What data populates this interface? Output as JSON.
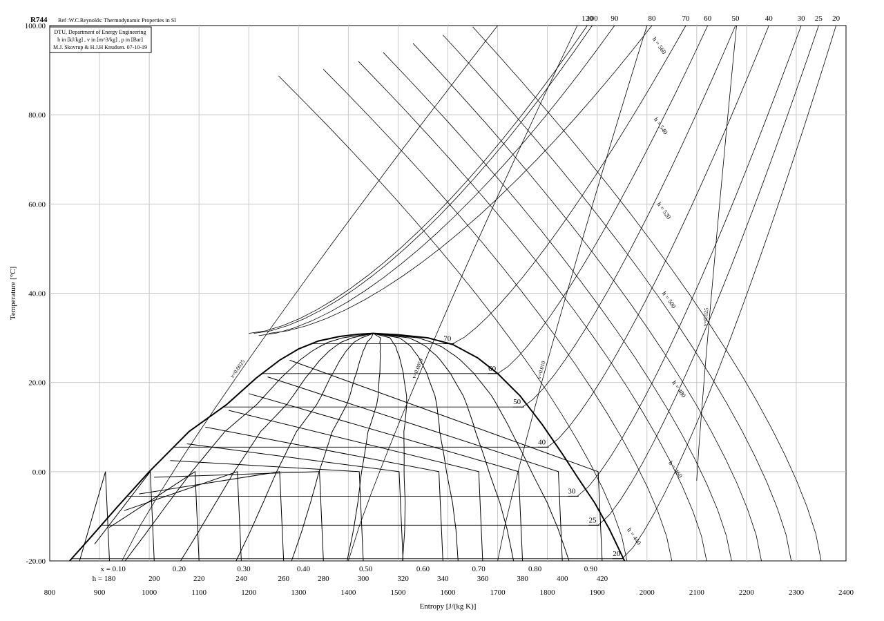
{
  "chart_data": {
    "type": "line",
    "refrigerant": "R744",
    "reference": "Ref :W.C.Reynolds: Thermodynamic Properties in SI",
    "info_box": [
      "DTU, Department of Energy Engineering",
      "h in [kJ/kg] , v in [m^3/kg] , p in [Bar]",
      "M.J. Skovrup & H.J.H Knudsen. 07-10-19"
    ],
    "xlabel": "Entropy [J/(kg K)]",
    "ylabel": "Temperature [°C]",
    "xlim": [
      800,
      2400
    ],
    "ylim": [
      -20,
      100
    ],
    "x_ticks": [
      "800",
      "900",
      "1000",
      "1100",
      "1200",
      "1300",
      "1400",
      "1500",
      "1600",
      "1700",
      "1800",
      "1900",
      "2000",
      "2100",
      "2200",
      "2300",
      "2400"
    ],
    "y_ticks": [
      {
        "value": 100,
        "label": "100.00"
      },
      {
        "value": 80,
        "label": "80.00"
      },
      {
        "value": 60,
        "label": "60.00"
      },
      {
        "value": 40,
        "label": "40.00"
      },
      {
        "value": 20,
        "label": "20.00"
      },
      {
        "value": 0,
        "label": "0.00"
      },
      {
        "value": -20,
        "label": "-20.00"
      }
    ],
    "grid": true,
    "saturation_dome": {
      "liquid": {
        "s": [
          840,
          880,
          935,
          1000,
          1080,
          1155,
          1215,
          1262,
          1300,
          1340,
          1382,
          1420,
          1450
        ],
        "T": [
          -20,
          -15,
          -8,
          0,
          9,
          15,
          21,
          25,
          27.5,
          29.3,
          30.3,
          30.8,
          31
        ]
      },
      "vapor": {
        "s": [
          1450,
          1500,
          1560,
          1610,
          1660,
          1700,
          1745,
          1790,
          1830,
          1862,
          1895,
          1925,
          1955
        ],
        "T": [
          31,
          30.7,
          30,
          28.5,
          25.5,
          22,
          17,
          10.5,
          4,
          -1.5,
          -7,
          -13,
          -20
        ]
      }
    },
    "quality_lines": {
      "label_prefix": "x = ",
      "labels": [
        "0.10",
        "0.20",
        "0.30",
        "0.40",
        "0.50",
        "0.60",
        "0.70",
        "0.80",
        "0.90"
      ],
      "s_at_bottom": [
        930,
        1060,
        1190,
        1310,
        1435,
        1550,
        1662,
        1775,
        1887
      ]
    },
    "enthalpy_bottom": {
      "label_prefix": "h = ",
      "labels": [
        "180",
        "200",
        "220",
        "240",
        "260",
        "280",
        "300",
        "320",
        "340",
        "360",
        "380",
        "400",
        "420"
      ],
      "s": [
        920,
        1010,
        1100,
        1185,
        1270,
        1350,
        1430,
        1510,
        1590,
        1670,
        1750,
        1830,
        1910
      ]
    },
    "enthalpy_superheat": [
      {
        "label": "h = 440",
        "s_bottom": 1960,
        "T_top": -13
      },
      {
        "label": "h = 460",
        "s_bottom": 2050,
        "T_top": 2
      },
      {
        "label": "h = 480",
        "s_bottom": 2120,
        "T_top": 20
      },
      {
        "label": "h = 500",
        "s_bottom": 2170,
        "T_top": 40
      },
      {
        "label": "h = 520",
        "s_bottom": 2230,
        "T_top": 60
      },
      {
        "label": "h = 540",
        "s_bottom": 2290,
        "T_top": 79
      },
      {
        "label": "h = 560",
        "s_bottom": 2350,
        "T_top": 97
      }
    ],
    "isobars": [
      {
        "p": "20",
        "sat_T": -19.5,
        "s_sat": 1950,
        "s_top": 2380
      },
      {
        "p": "25",
        "sat_T": -12,
        "s_sat": 1902,
        "s_top": 2345
      },
      {
        "p": "30",
        "sat_T": -5.5,
        "s_sat": 1860,
        "s_top": 2310
      },
      {
        "p": "40",
        "sat_T": 5.5,
        "s_sat": 1800,
        "s_top": 2245
      },
      {
        "p": "50",
        "sat_T": 14.5,
        "s_sat": 1750,
        "s_top": 2178
      },
      {
        "p": "60",
        "sat_T": 22,
        "s_sat": 1700,
        "s_top": 2122
      },
      {
        "p": "70",
        "sat_T": 28.7,
        "s_sat": 1610,
        "s_top": 2078
      },
      {
        "p": "80",
        "s_start": 1240,
        "T_start": 31,
        "s_top": 2010
      },
      {
        "p": "90",
        "s_start": 1220,
        "T_start": 30.5,
        "s_top": 1935
      },
      {
        "p": "100",
        "s_start": 1210,
        "T_start": 31,
        "s_top": 1890
      },
      {
        "p": "120",
        "s_start": 1200,
        "T_start": 31,
        "s_top": 1880
      }
    ],
    "isochores": [
      {
        "label": "v=0.0025",
        "s_bottom": 945,
        "T_bottom": -20,
        "s_top": 1700,
        "T_top": 100
      },
      {
        "label": "v=0.0050",
        "s_bottom": 1400,
        "T_bottom": -20,
        "s_top": 1860,
        "T_top": 100
      },
      {
        "label": "v=0.010",
        "s_bottom": 1700,
        "T_bottom": -20,
        "s_top": 2000,
        "T_top": 100
      },
      {
        "label": "v=0.025",
        "s_bottom": 2100,
        "T_bottom": -2,
        "s_top": 2180,
        "T_top": 100
      }
    ],
    "pressure_axis_top": [
      "120",
      "100",
      "90",
      "80",
      "70",
      "60",
      "50",
      "40",
      "30",
      "25",
      "20"
    ],
    "dome_pressure_labels": [
      "70",
      "60",
      "50",
      "40",
      "30",
      "25",
      "20"
    ]
  }
}
